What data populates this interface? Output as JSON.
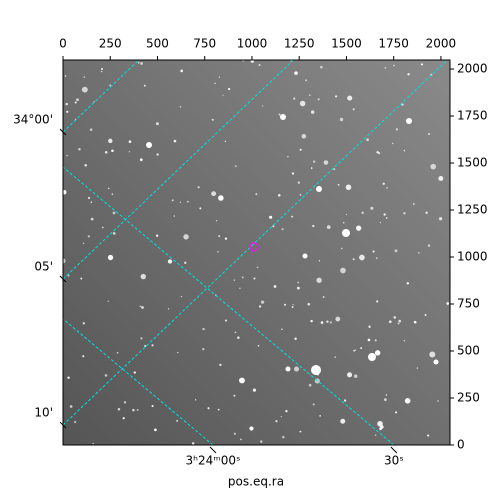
{
  "chart_data": {
    "type": "image",
    "xlabel": "pos.eq.ra",
    "xlim": [
      0,
      2048
    ],
    "ylim": [
      0,
      2048
    ],
    "xticks": [
      0,
      250,
      500,
      750,
      1000,
      1250,
      1500,
      1750,
      2000
    ],
    "yticks": [
      0,
      250,
      500,
      750,
      1000,
      1250,
      1500,
      1750,
      2000
    ],
    "wcs_xticks": [
      {
        "value": 794,
        "label": "3ʰ24ᵐ00ˢ"
      },
      {
        "value": 1751,
        "label": "30ˢ"
      }
    ],
    "wcs_yticks": [
      {
        "value": 1665,
        "label": "34°00'"
      },
      {
        "value": 883,
        "label": "05'"
      },
      {
        "value": 106,
        "label": "10'"
      }
    ],
    "grid_color": "#00e0e0"
  }
}
